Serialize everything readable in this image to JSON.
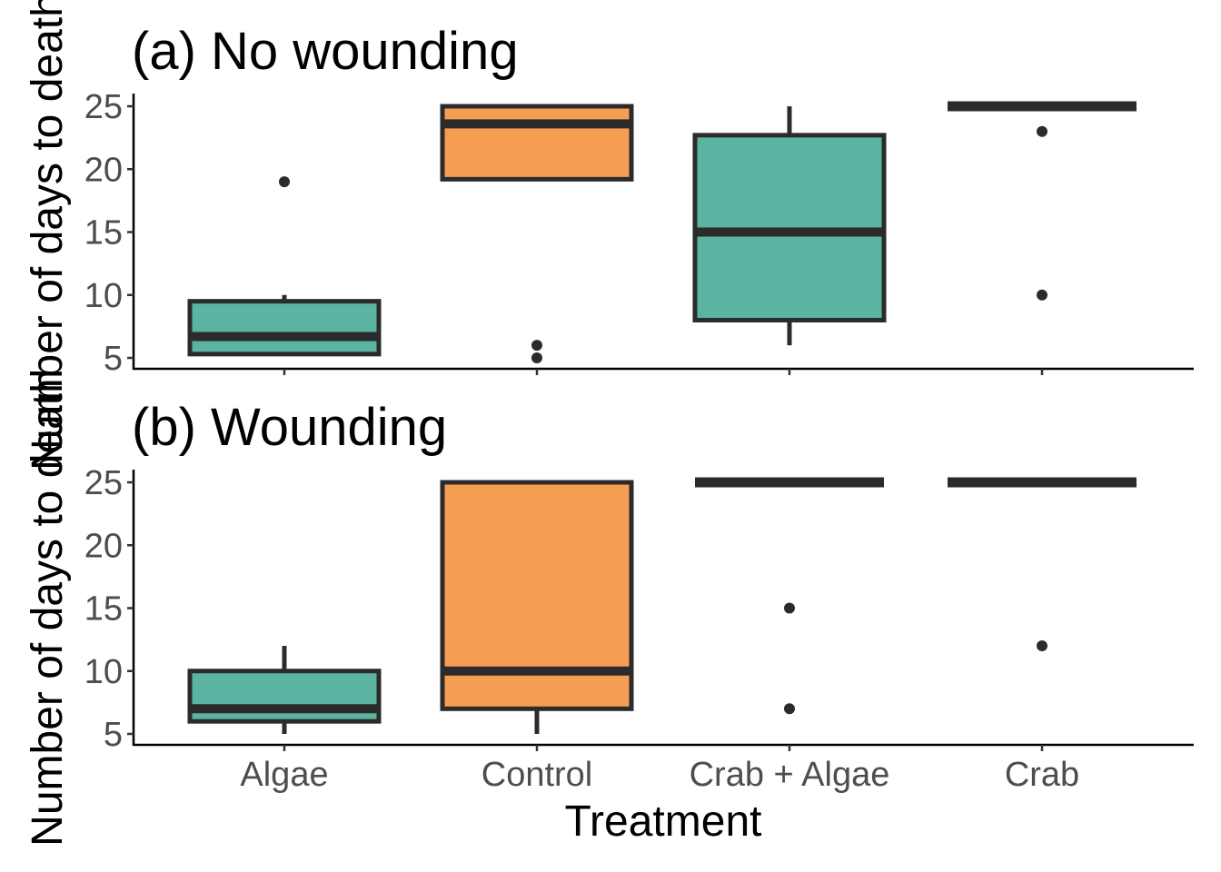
{
  "chart_data": {
    "type": "boxplot",
    "xlabel": "Treatment",
    "ylabel": "Number of days to death",
    "categories": [
      "Algae",
      "Control",
      "Crab + Algae",
      "Crab"
    ],
    "ylim": [
      4,
      26
    ],
    "yticks": [
      5,
      10,
      15,
      20,
      25
    ],
    "grid": false,
    "legend": "none",
    "colors": {
      "Algae": "#5ab4a1",
      "Control": "#f69d54",
      "Crab + Algae": "#5ab4a1",
      "Crab": "#5ab4a1",
      "outline": "#2b2b2b"
    },
    "panels": [
      {
        "title": "(a) No wounding",
        "boxes": [
          {
            "category": "Algae",
            "min": 5.3,
            "q1": 5.3,
            "median": 6.7,
            "q3": 9.5,
            "max": 10,
            "outliers": [
              19
            ]
          },
          {
            "category": "Control",
            "min": 19.2,
            "q1": 19.2,
            "median": 23.6,
            "q3": 25,
            "max": 25,
            "outliers": [
              6,
              5
            ]
          },
          {
            "category": "Crab + Algae",
            "min": 6,
            "q1": 8,
            "median": 15,
            "q3": 22.7,
            "max": 25,
            "outliers": []
          },
          {
            "category": "Crab",
            "min": 25,
            "q1": 25,
            "median": 25,
            "q3": 25,
            "max": 25,
            "outliers": [
              23,
              10
            ]
          }
        ]
      },
      {
        "title": "(b) Wounding",
        "boxes": [
          {
            "category": "Algae",
            "min": 5,
            "q1": 6,
            "median": 7,
            "q3": 10,
            "max": 12,
            "outliers": []
          },
          {
            "category": "Control",
            "min": 5,
            "q1": 7,
            "median": 10,
            "q3": 25,
            "max": 25,
            "outliers": []
          },
          {
            "category": "Crab + Algae",
            "min": 25,
            "q1": 25,
            "median": 25,
            "q3": 25,
            "max": 25,
            "outliers": [
              15,
              7
            ]
          },
          {
            "category": "Crab",
            "min": 25,
            "q1": 25,
            "median": 25,
            "q3": 25,
            "max": 25,
            "outliers": [
              12
            ]
          }
        ]
      }
    ]
  }
}
